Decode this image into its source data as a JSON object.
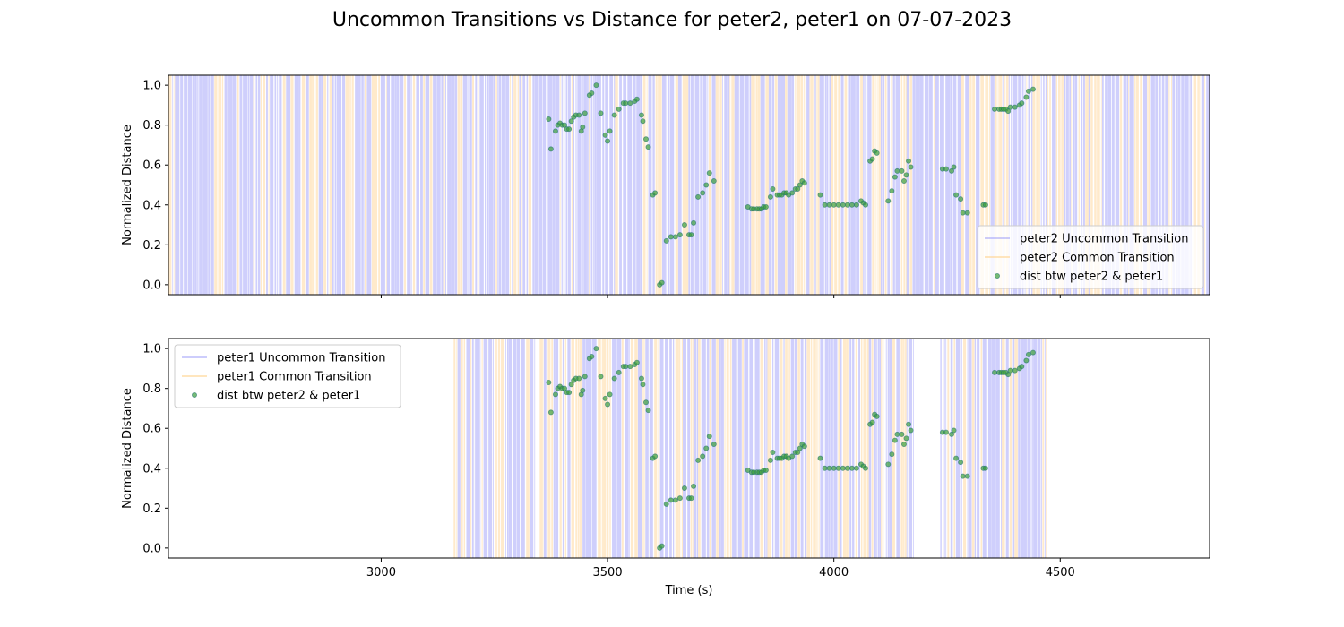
{
  "figure": {
    "title": "Uncommon Transitions vs Distance for peter2, peter1 on 07-07-2023"
  },
  "colors": {
    "uncommon": "#6a6af5",
    "common": "#ffd9a0",
    "scatter_fill": "#3a9e3a",
    "scatter_edge": "#1f6f6f"
  },
  "chart_data": [
    {
      "type": "scatter",
      "title": "",
      "xlabel": "",
      "ylabel": "Normalized Distance",
      "xlim": [
        2530,
        4830
      ],
      "ylim": [
        -0.05,
        1.05
      ],
      "x_ticks": [
        3000,
        3500,
        4000,
        4500
      ],
      "y_ticks": [
        0.0,
        0.2,
        0.4,
        0.6,
        0.8,
        1.0
      ],
      "y_tick_labels": [
        "0.0",
        "0.2",
        "0.4",
        "0.6",
        "0.8",
        "1.0"
      ],
      "show_x_tick_labels": false,
      "grid": false,
      "legend_position": "lower-right",
      "legend": [
        "peter2 Uncommon Transition",
        "peter2 Common Transition",
        "dist btw peter2 & peter1"
      ],
      "band_range": [
        2530,
        4830
      ],
      "band_seed": 7
    },
    {
      "type": "scatter",
      "title": "",
      "xlabel": "Time (s)",
      "ylabel": "Normalized Distance",
      "xlim": [
        2530,
        4830
      ],
      "ylim": [
        -0.05,
        1.05
      ],
      "x_ticks": [
        3000,
        3500,
        4000,
        4500
      ],
      "x_tick_labels": [
        "3000",
        "3500",
        "4000",
        "4500"
      ],
      "y_ticks": [
        0.0,
        0.2,
        0.4,
        0.6,
        0.8,
        1.0
      ],
      "y_tick_labels": [
        "0.0",
        "0.2",
        "0.4",
        "0.6",
        "0.8",
        "1.0"
      ],
      "show_x_tick_labels": true,
      "grid": false,
      "legend_position": "upper-left",
      "legend": [
        "peter1 Uncommon Transition",
        "peter1 Common Transition",
        "dist btw peter2 & peter1"
      ],
      "band_segments": [
        [
          3160,
          3340
        ],
        [
          3350,
          3700
        ],
        [
          3700,
          4110
        ],
        [
          4115,
          4175
        ],
        [
          4235,
          4470
        ]
      ],
      "band_seed": 13
    }
  ],
  "shared_scatter": {
    "name": "dist btw peter2 & peter1",
    "points": [
      [
        3370,
        0.83
      ],
      [
        3375,
        0.68
      ],
      [
        3385,
        0.77
      ],
      [
        3390,
        0.8
      ],
      [
        3395,
        0.81
      ],
      [
        3400,
        0.8
      ],
      [
        3405,
        0.8
      ],
      [
        3410,
        0.78
      ],
      [
        3415,
        0.78
      ],
      [
        3420,
        0.82
      ],
      [
        3425,
        0.84
      ],
      [
        3430,
        0.85
      ],
      [
        3437,
        0.85
      ],
      [
        3442,
        0.77
      ],
      [
        3445,
        0.79
      ],
      [
        3450,
        0.86
      ],
      [
        3460,
        0.95
      ],
      [
        3465,
        0.96
      ],
      [
        3475,
        1.0
      ],
      [
        3485,
        0.86
      ],
      [
        3495,
        0.75
      ],
      [
        3500,
        0.72
      ],
      [
        3505,
        0.77
      ],
      [
        3515,
        0.85
      ],
      [
        3525,
        0.88
      ],
      [
        3535,
        0.91
      ],
      [
        3540,
        0.91
      ],
      [
        3550,
        0.91
      ],
      [
        3560,
        0.92
      ],
      [
        3565,
        0.93
      ],
      [
        3575,
        0.85
      ],
      [
        3578,
        0.82
      ],
      [
        3585,
        0.73
      ],
      [
        3590,
        0.69
      ],
      [
        3600,
        0.45
      ],
      [
        3605,
        0.46
      ],
      [
        3615,
        0.0
      ],
      [
        3620,
        0.01
      ],
      [
        3630,
        0.22
      ],
      [
        3640,
        0.24
      ],
      [
        3650,
        0.24
      ],
      [
        3660,
        0.25
      ],
      [
        3670,
        0.3
      ],
      [
        3680,
        0.25
      ],
      [
        3685,
        0.25
      ],
      [
        3690,
        0.31
      ],
      [
        3700,
        0.44
      ],
      [
        3710,
        0.46
      ],
      [
        3718,
        0.5
      ],
      [
        3725,
        0.56
      ],
      [
        3735,
        0.52
      ],
      [
        3810,
        0.39
      ],
      [
        3818,
        0.38
      ],
      [
        3823,
        0.38
      ],
      [
        3830,
        0.38
      ],
      [
        3835,
        0.38
      ],
      [
        3840,
        0.38
      ],
      [
        3845,
        0.39
      ],
      [
        3850,
        0.39
      ],
      [
        3860,
        0.44
      ],
      [
        3865,
        0.48
      ],
      [
        3875,
        0.45
      ],
      [
        3880,
        0.45
      ],
      [
        3885,
        0.45
      ],
      [
        3890,
        0.46
      ],
      [
        3895,
        0.46
      ],
      [
        3900,
        0.45
      ],
      [
        3908,
        0.46
      ],
      [
        3915,
        0.48
      ],
      [
        3920,
        0.48
      ],
      [
        3925,
        0.5
      ],
      [
        3930,
        0.52
      ],
      [
        3935,
        0.51
      ],
      [
        3970,
        0.45
      ],
      [
        3980,
        0.4
      ],
      [
        3990,
        0.4
      ],
      [
        4000,
        0.4
      ],
      [
        4010,
        0.4
      ],
      [
        4020,
        0.4
      ],
      [
        4030,
        0.4
      ],
      [
        4040,
        0.4
      ],
      [
        4050,
        0.4
      ],
      [
        4060,
        0.42
      ],
      [
        4065,
        0.41
      ],
      [
        4070,
        0.4
      ],
      [
        4080,
        0.62
      ],
      [
        4085,
        0.63
      ],
      [
        4090,
        0.67
      ],
      [
        4095,
        0.66
      ],
      [
        4120,
        0.42
      ],
      [
        4128,
        0.47
      ],
      [
        4135,
        0.54
      ],
      [
        4140,
        0.57
      ],
      [
        4150,
        0.57
      ],
      [
        4155,
        0.52
      ],
      [
        4160,
        0.55
      ],
      [
        4165,
        0.62
      ],
      [
        4170,
        0.59
      ],
      [
        4240,
        0.58
      ],
      [
        4248,
        0.58
      ],
      [
        4260,
        0.57
      ],
      [
        4265,
        0.59
      ],
      [
        4270,
        0.45
      ],
      [
        4280,
        0.43
      ],
      [
        4285,
        0.36
      ],
      [
        4295,
        0.36
      ],
      [
        4330,
        0.4
      ],
      [
        4335,
        0.4
      ],
      [
        4355,
        0.88
      ],
      [
        4365,
        0.88
      ],
      [
        4370,
        0.88
      ],
      [
        4375,
        0.88
      ],
      [
        4380,
        0.88
      ],
      [
        4385,
        0.87
      ],
      [
        4390,
        0.89
      ],
      [
        4400,
        0.89
      ],
      [
        4410,
        0.9
      ],
      [
        4415,
        0.91
      ],
      [
        4425,
        0.94
      ],
      [
        4430,
        0.97
      ],
      [
        4440,
        0.98
      ]
    ]
  }
}
